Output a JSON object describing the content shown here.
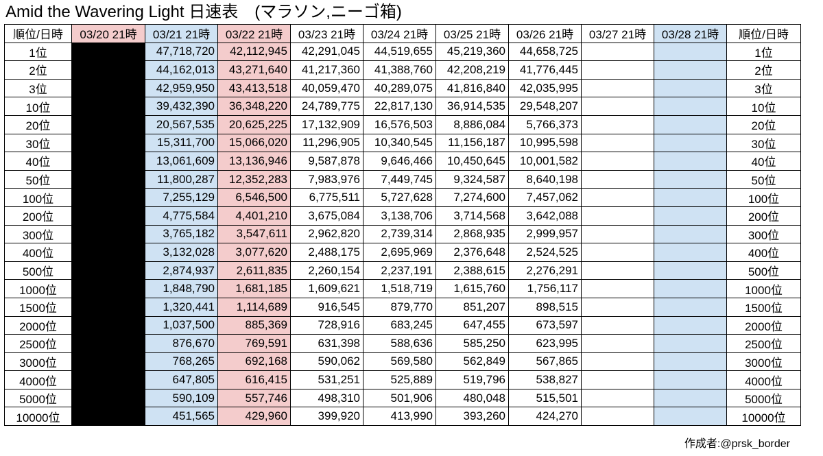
{
  "title": "Amid the Wavering Light 日速表　(マラソン,ニーゴ箱)",
  "headers": [
    "順位/日時",
    "03/20 21時",
    "03/21 21時",
    "03/22 21時",
    "03/23 21時",
    "03/24 21時",
    "03/25 21時",
    "03/26 21時",
    "03/27 21時",
    "03/28 21時",
    "順位/日時"
  ],
  "colors": {
    "pink": "#f4cccc",
    "blue": "#cfe2f3",
    "black": "#000000"
  },
  "rows": [
    {
      "rank": "1位",
      "values": [
        "",
        "47,718,720",
        "42,112,945",
        "42,291,045",
        "44,519,655",
        "45,219,360",
        "44,658,725",
        "",
        ""
      ]
    },
    {
      "rank": "2位",
      "values": [
        "",
        "44,162,013",
        "43,271,640",
        "41,217,360",
        "41,388,760",
        "42,208,219",
        "41,776,445",
        "",
        ""
      ]
    },
    {
      "rank": "3位",
      "values": [
        "",
        "42,959,950",
        "43,413,518",
        "40,059,470",
        "40,289,075",
        "41,816,840",
        "42,035,995",
        "",
        ""
      ]
    },
    {
      "rank": "10位",
      "values": [
        "",
        "39,432,390",
        "36,348,220",
        "24,789,775",
        "22,817,130",
        "36,914,535",
        "29,548,207",
        "",
        ""
      ]
    },
    {
      "rank": "20位",
      "values": [
        "",
        "20,567,535",
        "20,625,225",
        "17,132,909",
        "16,576,503",
        "8,886,084",
        "5,766,373",
        "",
        ""
      ]
    },
    {
      "rank": "30位",
      "values": [
        "",
        "15,311,700",
        "15,066,020",
        "11,296,905",
        "10,340,545",
        "11,156,187",
        "10,995,598",
        "",
        ""
      ]
    },
    {
      "rank": "40位",
      "values": [
        "",
        "13,061,609",
        "13,136,946",
        "9,587,878",
        "9,646,466",
        "10,450,645",
        "10,001,582",
        "",
        ""
      ]
    },
    {
      "rank": "50位",
      "values": [
        "",
        "11,800,287",
        "12,352,283",
        "7,983,976",
        "7,449,745",
        "9,324,587",
        "8,640,198",
        "",
        ""
      ]
    },
    {
      "rank": "100位",
      "values": [
        "",
        "7,255,129",
        "6,546,500",
        "6,775,511",
        "5,727,628",
        "7,274,600",
        "7,457,062",
        "",
        ""
      ]
    },
    {
      "rank": "200位",
      "values": [
        "",
        "4,775,584",
        "4,401,210",
        "3,675,084",
        "3,138,706",
        "3,714,568",
        "3,642,088",
        "",
        ""
      ]
    },
    {
      "rank": "300位",
      "values": [
        "",
        "3,765,182",
        "3,547,611",
        "2,962,820",
        "2,739,314",
        "2,868,935",
        "2,999,957",
        "",
        ""
      ]
    },
    {
      "rank": "400位",
      "values": [
        "",
        "3,132,028",
        "3,077,620",
        "2,488,175",
        "2,695,969",
        "2,376,648",
        "2,524,525",
        "",
        ""
      ]
    },
    {
      "rank": "500位",
      "values": [
        "",
        "2,874,937",
        "2,611,835",
        "2,260,154",
        "2,237,191",
        "2,388,615",
        "2,276,291",
        "",
        ""
      ]
    },
    {
      "rank": "1000位",
      "values": [
        "",
        "1,848,790",
        "1,681,185",
        "1,609,621",
        "1,518,719",
        "1,615,760",
        "1,756,117",
        "",
        ""
      ]
    },
    {
      "rank": "1500位",
      "values": [
        "",
        "1,320,441",
        "1,114,689",
        "916,545",
        "879,770",
        "851,207",
        "898,515",
        "",
        ""
      ]
    },
    {
      "rank": "2000位",
      "values": [
        "",
        "1,037,500",
        "885,369",
        "728,916",
        "683,245",
        "647,455",
        "673,597",
        "",
        ""
      ]
    },
    {
      "rank": "2500位",
      "values": [
        "",
        "876,670",
        "769,591",
        "631,398",
        "588,636",
        "585,250",
        "623,995",
        "",
        ""
      ]
    },
    {
      "rank": "3000位",
      "values": [
        "",
        "768,265",
        "692,168",
        "590,062",
        "569,580",
        "562,849",
        "567,865",
        "",
        ""
      ]
    },
    {
      "rank": "4000位",
      "values": [
        "",
        "647,805",
        "616,415",
        "531,251",
        "525,889",
        "519,796",
        "538,827",
        "",
        ""
      ]
    },
    {
      "rank": "5000位",
      "values": [
        "",
        "590,109",
        "557,746",
        "498,310",
        "501,906",
        "480,048",
        "515,501",
        "",
        ""
      ]
    },
    {
      "rank": "10000位",
      "values": [
        "",
        "451,565",
        "429,960",
        "399,920",
        "413,990",
        "393,260",
        "424,270",
        "",
        ""
      ]
    }
  ],
  "credit": "作成者:@prsk_border"
}
